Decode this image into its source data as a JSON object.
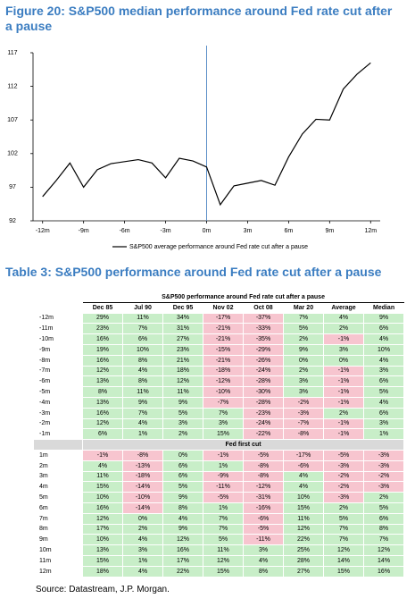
{
  "chart_data": {
    "type": "line",
    "title": "Figure 20: S&P500 median performance around Fed rate cut after a pause",
    "x": [
      -12,
      -11,
      -10,
      -9,
      -8,
      -7,
      -6,
      -5,
      -4,
      -3,
      -2,
      -1,
      0,
      1,
      2,
      3,
      4,
      5,
      6,
      7,
      8,
      9,
      10,
      11,
      12
    ],
    "series": [
      {
        "name": "S&P500 average performance around Fed rate cut after a pause",
        "color": "#000000",
        "values": [
          95.6,
          98.0,
          100.6,
          97.0,
          99.6,
          100.5,
          100.8,
          101.1,
          100.6,
          98.4,
          101.3,
          100.9,
          100.0,
          94.4,
          97.2,
          97.6,
          98.0,
          97.3,
          101.5,
          104.9,
          107.1,
          107.0,
          111.6,
          113.8,
          115.5
        ]
      }
    ],
    "xlim": [
      -12.7,
      12.7
    ],
    "xticks": [
      {
        "value": -12,
        "label": "-12m"
      },
      {
        "value": -9,
        "label": "-9m"
      },
      {
        "value": -6,
        "label": "-6m"
      },
      {
        "value": -3,
        "label": "-3m"
      },
      {
        "value": 0,
        "label": "0m"
      },
      {
        "value": 3,
        "label": "3m"
      },
      {
        "value": 6,
        "label": "6m"
      },
      {
        "value": 9,
        "label": "9m"
      },
      {
        "value": 12,
        "label": "12m"
      }
    ],
    "ylim": [
      92,
      117
    ],
    "yticks": [
      92,
      97,
      102,
      107,
      112,
      117
    ],
    "vline": 0,
    "vline_color": "#5b8fc7",
    "legend": "bottom"
  },
  "table": {
    "title": "Table 3: S&P500 performance around Fed rate cut after a pause",
    "group_header": "S&P500 performance around Fed rate cut after a pause",
    "columns": [
      "Dec 85",
      "Jul 90",
      "Dec 95",
      "Nov 02",
      "Oct 08",
      "Mar 20",
      "Average",
      "Median"
    ],
    "sections": [
      {
        "rows": [
          {
            "label": "-12m",
            "cells": [
              "29%",
              "11%",
              "34%",
              "-17%",
              "-37%",
              "7%",
              "4%",
              "9%"
            ]
          },
          {
            "label": "-11m",
            "cells": [
              "23%",
              "7%",
              "31%",
              "-21%",
              "-33%",
              "5%",
              "2%",
              "6%"
            ]
          },
          {
            "label": "-10m",
            "cells": [
              "16%",
              "6%",
              "27%",
              "-21%",
              "-35%",
              "2%",
              "-1%",
              "4%"
            ]
          },
          {
            "label": "-9m",
            "cells": [
              "19%",
              "10%",
              "23%",
              "-15%",
              "-29%",
              "9%",
              "3%",
              "10%"
            ]
          },
          {
            "label": "-8m",
            "cells": [
              "16%",
              "8%",
              "21%",
              "-21%",
              "-26%",
              "0%",
              "0%",
              "4%"
            ]
          },
          {
            "label": "-7m",
            "cells": [
              "12%",
              "4%",
              "18%",
              "-18%",
              "-24%",
              "2%",
              "-1%",
              "3%"
            ]
          },
          {
            "label": "-6m",
            "cells": [
              "13%",
              "8%",
              "12%",
              "-12%",
              "-28%",
              "3%",
              "-1%",
              "6%"
            ]
          },
          {
            "label": "-5m",
            "cells": [
              "8%",
              "11%",
              "11%",
              "-10%",
              "-30%",
              "3%",
              "-1%",
              "5%"
            ]
          },
          {
            "label": "-4m",
            "cells": [
              "13%",
              "9%",
              "9%",
              "-7%",
              "-28%",
              "-2%",
              "-1%",
              "4%"
            ]
          },
          {
            "label": "-3m",
            "cells": [
              "16%",
              "7%",
              "5%",
              "7%",
              "-23%",
              "-3%",
              "2%",
              "6%"
            ]
          },
          {
            "label": "-2m",
            "cells": [
              "12%",
              "4%",
              "3%",
              "3%",
              "-24%",
              "-7%",
              "-1%",
              "3%"
            ]
          },
          {
            "label": "-1m",
            "cells": [
              "6%",
              "1%",
              "2%",
              "15%",
              "-22%",
              "-8%",
              "-1%",
              "1%"
            ]
          }
        ]
      },
      {
        "label": "Fed first cut",
        "rows": [
          {
            "label": "1m",
            "cells": [
              "-1%",
              "-8%",
              "0%",
              "-1%",
              "-5%",
              "-17%",
              "-5%",
              "-3%"
            ]
          },
          {
            "label": "2m",
            "cells": [
              "4%",
              "-13%",
              "6%",
              "1%",
              "-8%",
              "-6%",
              "-3%",
              "-3%"
            ]
          },
          {
            "label": "3m",
            "cells": [
              "11%",
              "-18%",
              "6%",
              "-9%",
              "-8%",
              "4%",
              "-2%",
              "-2%"
            ]
          },
          {
            "label": "4m",
            "cells": [
              "15%",
              "-14%",
              "5%",
              "-11%",
              "-12%",
              "4%",
              "-2%",
              "-3%"
            ]
          },
          {
            "label": "5m",
            "cells": [
              "10%",
              "-10%",
              "9%",
              "-5%",
              "-31%",
              "10%",
              "-3%",
              "2%"
            ]
          },
          {
            "label": "6m",
            "cells": [
              "16%",
              "-14%",
              "8%",
              "1%",
              "-16%",
              "15%",
              "2%",
              "5%"
            ]
          },
          {
            "label": "7m",
            "cells": [
              "12%",
              "0%",
              "4%",
              "7%",
              "-6%",
              "11%",
              "5%",
              "6%"
            ]
          },
          {
            "label": "8m",
            "cells": [
              "17%",
              "2%",
              "9%",
              "7%",
              "-5%",
              "12%",
              "7%",
              "8%"
            ]
          },
          {
            "label": "9m",
            "cells": [
              "10%",
              "4%",
              "12%",
              "5%",
              "-11%",
              "22%",
              "7%",
              "7%"
            ]
          },
          {
            "label": "10m",
            "cells": [
              "13%",
              "3%",
              "16%",
              "11%",
              "3%",
              "25%",
              "12%",
              "12%"
            ]
          },
          {
            "label": "11m",
            "cells": [
              "15%",
              "1%",
              "17%",
              "12%",
              "4%",
              "28%",
              "14%",
              "14%"
            ]
          },
          {
            "label": "12m",
            "cells": [
              "18%",
              "4%",
              "22%",
              "15%",
              "8%",
              "27%",
              "15%",
              "16%"
            ]
          }
        ]
      }
    ]
  },
  "source": "Source: Datastream, J.P. Morgan."
}
